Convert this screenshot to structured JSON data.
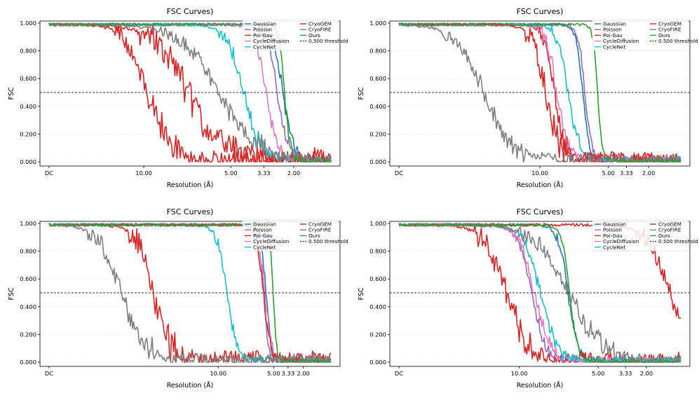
{
  "colors": {
    "Gaussian": "#1f77b4",
    "Poisson": "#9467bd",
    "Poi-Gau": "#d62728",
    "CycleDiffusion": "#e377c2",
    "CycleNet": "#17becf",
    "CryoGEM": "#d62728",
    "CryoFIRE": "#7f7f7f",
    "Ours": "#2ca02c",
    "threshold": "#333333"
  },
  "legend_entries": [
    "Gaussian",
    "Poisson",
    "Poi-Gau",
    "CycleDiffusion",
    "CycleNet",
    "CryoGEM",
    "CryoFIRE",
    "Ours",
    "0.500 threshold"
  ],
  "chart_data": [
    {
      "type": "line",
      "title": "FSC Curves)",
      "xlabel": "Resolution (Å)",
      "ylabel": "FSC",
      "ylim": [
        0,
        1
      ],
      "y_ticks": [
        "0.000",
        "0.200",
        "0.400",
        "0.600",
        "0.800",
        "1.000"
      ],
      "x_ticks": [
        "DC",
        "10.00",
        "5.00",
        "3.33",
        "2.00"
      ],
      "x_tick_positions": [
        0,
        0.336,
        0.645,
        0.762,
        0.868
      ],
      "threshold": 0.5,
      "x_range_frac": [
        0,
        1
      ],
      "series": [
        {
          "name": "Gaussian",
          "half_at": 0.83,
          "steep": 0.018,
          "noise": 0.04
        },
        {
          "name": "Poisson",
          "half_at": 0.81,
          "steep": 0.02,
          "noise": 0.04
        },
        {
          "name": "Poi-Gau",
          "half_at": 0.49,
          "steep": 0.06,
          "noise": 0.1
        },
        {
          "name": "CycleDiffusion",
          "half_at": 0.77,
          "steep": 0.02,
          "noise": 0.04
        },
        {
          "name": "CycleNet",
          "half_at": 0.69,
          "steep": 0.03,
          "noise": 0.05
        },
        {
          "name": "CryoGEM",
          "half_at": 0.35,
          "steep": 0.04,
          "noise": 0.08
        },
        {
          "name": "CryoFIRE",
          "half_at": 0.6,
          "steep": 0.07,
          "noise": 0.05
        },
        {
          "name": "Ours",
          "half_at": 0.835,
          "steep": 0.01,
          "noise": 0.03
        }
      ]
    },
    {
      "type": "line",
      "title": "FSC Curves)",
      "xlabel": "Resolution (Å)",
      "ylabel": "FSC",
      "ylim": [
        0,
        1
      ],
      "y_ticks": [
        "0.000",
        "0.200",
        "0.400",
        "0.600",
        "0.800",
        "1.000"
      ],
      "x_ticks": [
        "DC",
        "10.00",
        "5.00",
        "3.33",
        "2.00"
      ],
      "x_tick_positions": [
        0,
        0.5,
        0.743,
        0.807,
        0.886
      ],
      "threshold": 0.5,
      "series": [
        {
          "name": "Gaussian",
          "half_at": 0.652,
          "steep": 0.012,
          "noise": 0.03
        },
        {
          "name": "Poisson",
          "half_at": 0.66,
          "steep": 0.012,
          "noise": 0.03
        },
        {
          "name": "Poi-Gau",
          "half_at": 0.55,
          "steep": 0.02,
          "noise": 0.06
        },
        {
          "name": "CycleDiffusion",
          "half_at": 0.56,
          "steep": 0.02,
          "noise": 0.05
        },
        {
          "name": "CycleNet",
          "half_at": 0.6,
          "steep": 0.02,
          "noise": 0.04
        },
        {
          "name": "CryoGEM",
          "half_at": 0.52,
          "steep": 0.025,
          "noise": 0.07
        },
        {
          "name": "CryoFIRE",
          "half_at": 0.3,
          "steep": 0.05,
          "noise": 0.05
        },
        {
          "name": "Ours",
          "half_at": 0.705,
          "steep": 0.008,
          "noise": 0.02
        }
      ]
    },
    {
      "type": "line",
      "title": "FSC Curves)",
      "xlabel": "Resolution (Å)",
      "ylabel": "FSC",
      "ylim": [
        0,
        1
      ],
      "y_ticks": [
        "0.000",
        "0.200",
        "0.400",
        "0.600",
        "0.800",
        "1.000"
      ],
      "x_ticks": [
        "DC",
        "10.00",
        "5.00",
        "3.33",
        "2.00"
      ],
      "x_tick_positions": [
        0,
        0.6,
        0.797,
        0.848,
        0.902
      ],
      "threshold": 0.5,
      "series": [
        {
          "name": "Gaussian",
          "half_at": 0.77,
          "steep": 0.01,
          "noise": 0.03
        },
        {
          "name": "Poisson",
          "half_at": 0.76,
          "steep": 0.01,
          "noise": 0.03
        },
        {
          "name": "Poi-Gau",
          "half_at": 0.37,
          "steep": 0.03,
          "noise": 0.08
        },
        {
          "name": "CycleDiffusion",
          "half_at": 0.765,
          "steep": 0.012,
          "noise": 0.04
        },
        {
          "name": "CycleNet",
          "half_at": 0.63,
          "steep": 0.018,
          "noise": 0.04
        },
        {
          "name": "CryoGEM",
          "half_at": 0.76,
          "steep": 0.012,
          "noise": 0.04
        },
        {
          "name": "CryoFIRE",
          "half_at": 0.255,
          "steep": 0.04,
          "noise": 0.06
        },
        {
          "name": "Ours",
          "half_at": 0.795,
          "steep": 0.006,
          "noise": 0.02
        }
      ]
    },
    {
      "type": "line",
      "title": "FSC Curves)",
      "xlabel": "Resolution (Å)",
      "ylabel": "FSC",
      "ylim": [
        0,
        1
      ],
      "y_ticks": [
        "0.000",
        "0.200",
        "0.400",
        "0.600",
        "0.800",
        "1.000"
      ],
      "x_ticks": [
        "DC",
        "10.00",
        "5.00",
        "3.33",
        "2.00"
      ],
      "x_tick_positions": [
        0,
        0.427,
        0.707,
        0.804,
        0.878
      ],
      "threshold": 0.5,
      "series": [
        {
          "name": "Gaussian",
          "half_at": 0.6,
          "steep": 0.018,
          "noise": 0.03
        },
        {
          "name": "Poisson",
          "half_at": 0.47,
          "steep": 0.025,
          "noise": 0.03
        },
        {
          "name": "Poi-Gau",
          "half_at": 0.38,
          "steep": 0.04,
          "noise": 0.07
        },
        {
          "name": "CycleDiffusion",
          "half_at": 0.48,
          "steep": 0.028,
          "noise": 0.04
        },
        {
          "name": "CycleNet",
          "half_at": 0.5,
          "steep": 0.03,
          "noise": 0.04
        },
        {
          "name": "CryoGEM",
          "half_at": 0.96,
          "steep": 0.04,
          "noise": 0.06
        },
        {
          "name": "CryoFIRE",
          "half_at": 0.6,
          "steep": 0.06,
          "noise": 0.05
        },
        {
          "name": "Ours",
          "half_at": 0.605,
          "steep": 0.014,
          "noise": 0.02
        }
      ]
    }
  ]
}
